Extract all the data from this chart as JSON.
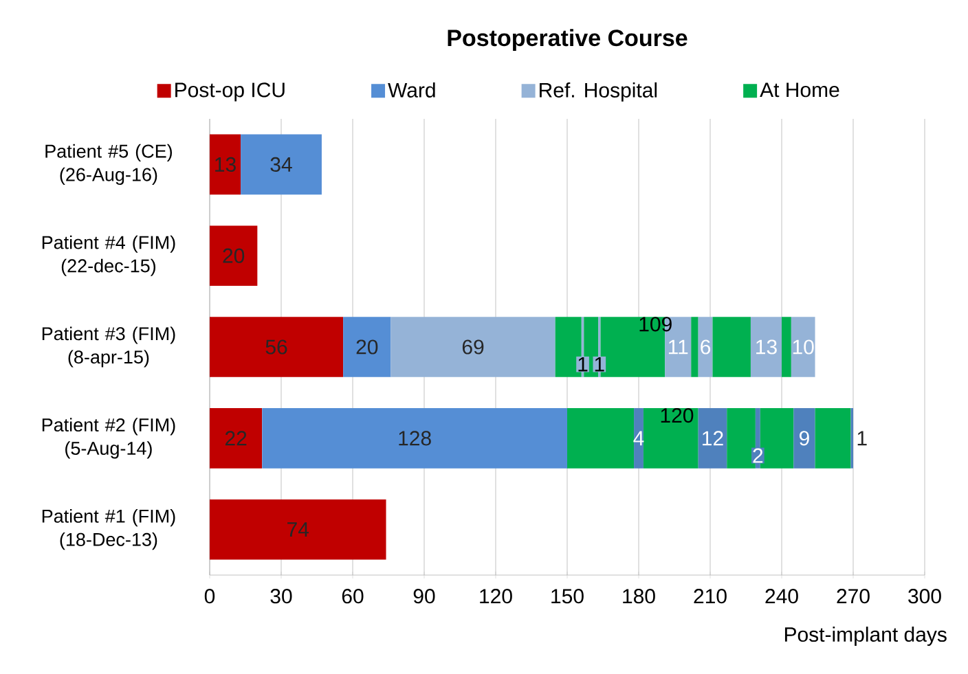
{
  "chart_data": {
    "type": "bar",
    "orientation": "horizontal",
    "stacked": true,
    "title": "Postoperative Course",
    "xlabel": "Post-implant days",
    "categories": [
      "Patient #5 (CE) (26-Aug-16)",
      "Patient #4 (FIM) (22-dec-15)",
      "Patient #3 (FIM) (8-apr-15)",
      "Patient #2 (FIM) (5-Aug-14)",
      "Patient #1 (FIM) (18-Dec-13)"
    ],
    "series": [
      {
        "name": "Post-op ICU",
        "color": "#c00000",
        "values": [
          13,
          20,
          56,
          22,
          74
        ],
        "value_labels": [
          "13",
          "20",
          "56",
          "22",
          "74"
        ]
      },
      {
        "name": "Ward",
        "color": "#558ed5",
        "values": [
          34,
          null,
          20,
          128,
          null
        ],
        "value_labels": [
          "34",
          null,
          "20",
          "128",
          null
        ]
      },
      {
        "name": "Ref. Hospital",
        "color": "#95b3d7",
        "values": [
          null,
          null,
          69,
          null,
          null
        ],
        "value_labels": [
          null,
          null,
          "69",
          null,
          null
        ]
      },
      {
        "name": "At Home",
        "color": "#00b050",
        "values": [
          null,
          null,
          11,
          28,
          null
        ]
      },
      {
        "colors": [
          null,
          null,
          "#95b3d7",
          "#4f81bd",
          null
        ],
        "values": [
          null,
          null,
          1,
          4,
          null
        ],
        "value_labels": [
          null,
          null,
          "1",
          "4",
          null
        ]
      },
      {
        "color": "#00b050",
        "values": [
          null,
          null,
          6,
          23,
          null
        ]
      },
      {
        "colors": [
          null,
          null,
          "#95b3d7",
          "#4f81bd",
          null
        ],
        "values": [
          null,
          null,
          1,
          12,
          null
        ],
        "value_labels": [
          null,
          null,
          "1",
          "12",
          null
        ]
      },
      {
        "color": "#00b050",
        "values": [
          null,
          null,
          27,
          12,
          null
        ]
      },
      {
        "colors": [
          null,
          null,
          "#95b3d7",
          "#4f81bd",
          null
        ],
        "values": [
          null,
          null,
          11,
          2,
          null
        ],
        "value_labels": [
          null,
          null,
          "11",
          "2",
          null
        ]
      },
      {
        "color": "#00b050",
        "values": [
          null,
          null,
          3,
          14,
          null
        ]
      },
      {
        "colors": [
          null,
          null,
          "#95b3d7",
          "#4f81bd",
          null
        ],
        "values": [
          null,
          null,
          6,
          9,
          null
        ],
        "value_labels": [
          null,
          null,
          "6",
          "9",
          null
        ]
      },
      {
        "color": "#00b050",
        "values": [
          null,
          null,
          16,
          15,
          null
        ]
      },
      {
        "colors": [
          null,
          null,
          "#95b3d7",
          "#4f81bd",
          null
        ],
        "values": [
          null,
          null,
          13,
          1,
          null
        ],
        "value_labels": [
          null,
          null,
          "13",
          "1",
          null
        ]
      },
      {
        "color": "#00b050",
        "values": [
          null,
          null,
          4,
          null,
          null
        ]
      },
      {
        "colors": [
          null,
          null,
          "#95b3d7",
          null,
          null
        ],
        "values": [
          null,
          null,
          10,
          null,
          null
        ],
        "value_labels": [
          null,
          null,
          "10",
          null,
          null
        ]
      }
    ],
    "annotations": [
      "109",
      "120"
    ],
    "xlim": [
      0,
      300
    ],
    "xticks": [
      0,
      30,
      60,
      90,
      120,
      150,
      180,
      210,
      240,
      270,
      300
    ],
    "grid": "x",
    "legend": "top"
  }
}
